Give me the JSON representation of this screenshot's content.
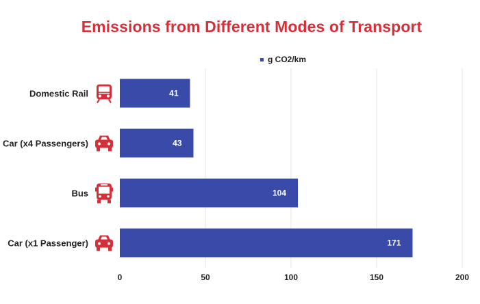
{
  "chart_data": {
    "type": "bar",
    "orientation": "horizontal",
    "title": "Emissions from Different Modes of Transport",
    "categories": [
      "Domestic Rail",
      "Car (x4 Passengers)",
      "Bus",
      "Car (x1 Passenger)"
    ],
    "category_icons": [
      "train-icon",
      "car-icon",
      "bus-icon",
      "car-icon"
    ],
    "series": [
      {
        "name": "g CO2/km",
        "values": [
          41,
          43,
          104,
          171
        ]
      }
    ],
    "xlim": [
      0,
      200
    ],
    "xticks": [
      0,
      50,
      100,
      150,
      200
    ],
    "grid": true,
    "legend_position": "top",
    "colors": {
      "bar": "#3a4aa8",
      "title": "#d62f3a",
      "icon": "#d62f3a",
      "grid": "#e4e4e4"
    }
  }
}
